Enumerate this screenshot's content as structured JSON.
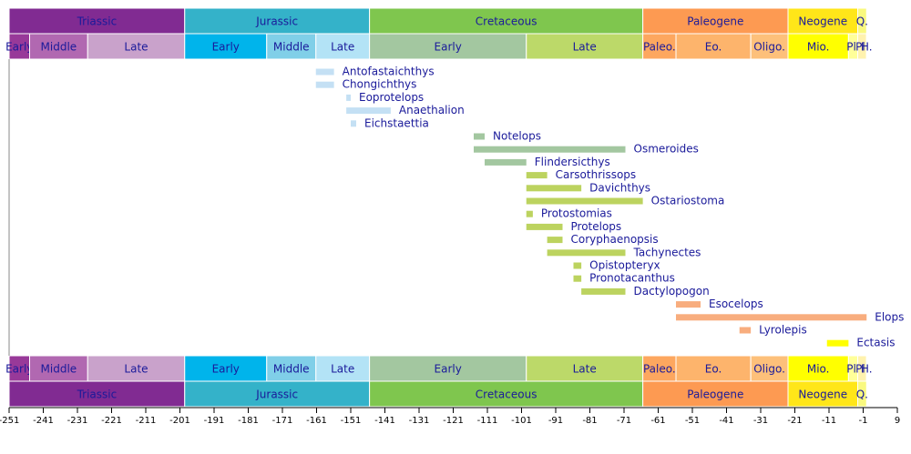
{
  "chart_data": {
    "type": "timeline",
    "xlim": [
      -251,
      9
    ],
    "xticks": [
      -251,
      -241,
      -231,
      -221,
      -211,
      -201,
      -191,
      -181,
      -171,
      -161,
      -151,
      -141,
      -131,
      -121,
      -111,
      -101,
      -91,
      -81,
      -71,
      -61,
      -51,
      -41,
      -31,
      -21,
      -11,
      -1,
      9
    ],
    "periods": [
      {
        "name": "Triassic",
        "values": [
          -251,
          -199.6
        ],
        "color": "#812b92"
      },
      {
        "name": "Jurassic",
        "values": [
          -199.6,
          -145.5
        ],
        "color": "#34b2c9"
      },
      {
        "name": "Cretaceous",
        "values": [
          -145.5,
          -65.5
        ],
        "color": "#7fc64e"
      },
      {
        "name": "Paleogene",
        "values": [
          -65.5,
          -23
        ],
        "color": "#fd9a52"
      },
      {
        "name": "Neogene",
        "values": [
          -23,
          -2.6
        ],
        "color": "#ffe619"
      },
      {
        "name": "Q.",
        "values": [
          -2.6,
          0
        ],
        "color": "#f9f97f"
      }
    ],
    "epochs": [
      {
        "name": "Early",
        "values": [
          -251,
          -245
        ],
        "color": "#983999"
      },
      {
        "name": "Middle",
        "values": [
          -245,
          -228
        ],
        "color": "#b168b1"
      },
      {
        "name": "Late",
        "values": [
          -228,
          -199.6
        ],
        "color": "#c9a2cb"
      },
      {
        "name": "Early",
        "values": [
          -199.6,
          -175.6
        ],
        "color": "#00b4eb"
      },
      {
        "name": "Middle",
        "values": [
          -175.6,
          -161.2
        ],
        "color": "#80cfe8"
      },
      {
        "name": "Late",
        "values": [
          -161.2,
          -145.5
        ],
        "color": "#b3e3f6"
      },
      {
        "name": "Early",
        "values": [
          -145.5,
          -99.6
        ],
        "color": "#a3c7a0"
      },
      {
        "name": "Late",
        "values": [
          -99.6,
          -65.5
        ],
        "color": "#bcd969"
      },
      {
        "name": "Paleo.",
        "values": [
          -65.5,
          -55.8
        ],
        "color": "#fda75f"
      },
      {
        "name": "Eo.",
        "values": [
          -55.8,
          -33.9
        ],
        "color": "#fdb46c"
      },
      {
        "name": "Oligo.",
        "values": [
          -33.9,
          -23
        ],
        "color": "#fdc07a"
      },
      {
        "name": "Mio.",
        "values": [
          -23,
          -5.3
        ],
        "color": "#ffff00"
      },
      {
        "name": "Pl.",
        "values": [
          -5.3,
          -2.6
        ],
        "color": "#ffff99"
      },
      {
        "name": "Pl.",
        "values": [
          -2.6,
          -0.01
        ],
        "color": "#fff2ae"
      },
      {
        "name": "H.",
        "values": [
          -0.01,
          0
        ],
        "color": "#fef2e0"
      }
    ],
    "taxa": [
      {
        "name": "Antofastaichthys",
        "values": [
          -161.2,
          -155.9
        ],
        "color": "#c4e0f4"
      },
      {
        "name": "Chongichthys",
        "values": [
          -161.2,
          -155.9
        ],
        "color": "#c4e0f4"
      },
      {
        "name": "Eoprotelops",
        "values": [
          -152.3,
          -151.0
        ],
        "color": "#c4e0f4"
      },
      {
        "name": "Anaethalion",
        "values": [
          -152.3,
          -139.3
        ],
        "color": "#c4e0f4"
      },
      {
        "name": "Eichstaettia",
        "values": [
          -151.0,
          -149.4
        ],
        "color": "#c4e0f4"
      },
      {
        "name": "Notelops",
        "values": [
          -115.0,
          -111.8
        ],
        "color": "#a3c7a0"
      },
      {
        "name": "Osmeroides",
        "values": [
          -115.0,
          -70.6
        ],
        "color": "#a3c7a0"
      },
      {
        "name": "Flindersicthys",
        "values": [
          -111.8,
          -99.6
        ],
        "color": "#a3c7a0"
      },
      {
        "name": "Carsothrissops",
        "values": [
          -99.6,
          -93.5
        ],
        "color": "#bcd35f"
      },
      {
        "name": "Davichthys",
        "values": [
          -99.6,
          -83.5
        ],
        "color": "#bcd35f"
      },
      {
        "name": "Ostariostoma",
        "values": [
          -99.6,
          -65.5
        ],
        "color": "#bcd35f"
      },
      {
        "name": "Protostomias",
        "values": [
          -99.6,
          -97.7
        ],
        "color": "#bcd35f"
      },
      {
        "name": "Protelops",
        "values": [
          -99.6,
          -89.0
        ],
        "color": "#bcd35f"
      },
      {
        "name": "Coryphaenopsis",
        "values": [
          -93.5,
          -89.0
        ],
        "color": "#bcd35f"
      },
      {
        "name": "Tachynectes",
        "values": [
          -93.5,
          -70.6
        ],
        "color": "#bcd35f"
      },
      {
        "name": "Opistopteryx",
        "values": [
          -85.8,
          -83.5
        ],
        "color": "#bcd35f"
      },
      {
        "name": "Pronotacanthus",
        "values": [
          -85.8,
          -83.5
        ],
        "color": "#bcd35f"
      },
      {
        "name": "Dactylopogon",
        "values": [
          -83.5,
          -70.6
        ],
        "color": "#bcd35f"
      },
      {
        "name": "Esocelops",
        "values": [
          -55.8,
          -48.6
        ],
        "color": "#f8ad7e"
      },
      {
        "name": "Elops",
        "values": [
          -55.8,
          0
        ],
        "color": "#f8ad7e"
      },
      {
        "name": "Lyrolepis",
        "values": [
          -37.2,
          -33.9
        ],
        "color": "#f8ad7e"
      },
      {
        "name": "Ectasis",
        "values": [
          -11.6,
          -5.3
        ],
        "color": "#ffff00"
      }
    ]
  }
}
